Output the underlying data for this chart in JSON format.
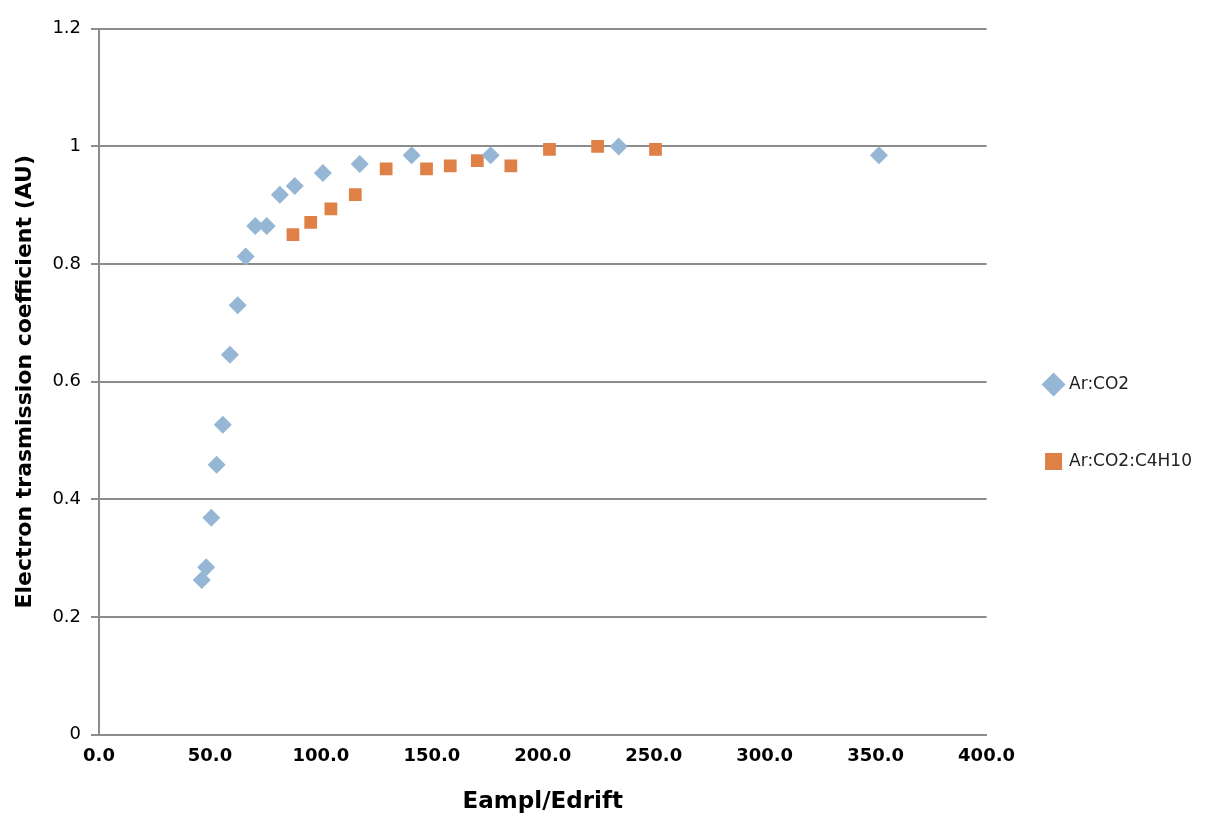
{
  "chart_data": {
    "type": "scatter",
    "xlabel": "Eampl/Edrift",
    "ylabel": "Electron trasmission coefficient (AU)",
    "xlim": [
      0,
      400
    ],
    "xticks": [
      {
        "value": 0,
        "label": "0.0"
      },
      {
        "value": 50,
        "label": "50.0"
      },
      {
        "value": 100,
        "label": "100.0"
      },
      {
        "value": 150,
        "label": "150.0"
      },
      {
        "value": 200,
        "label": "200.0"
      },
      {
        "value": 250,
        "label": "250.0"
      },
      {
        "value": 300,
        "label": "300.0"
      },
      {
        "value": 350,
        "label": "350.0"
      },
      {
        "value": 400,
        "label": "400.0"
      }
    ],
    "ylim": [
      0,
      1.2
    ],
    "yticks": [
      0,
      0.2,
      0.4,
      0.6,
      0.8,
      1,
      1.2
    ],
    "grid": "y",
    "legend": "right",
    "series": [
      {
        "name": "Ar:CO2",
        "color": "#95b6d5",
        "marker": "diamond",
        "x": [
          46.3,
          48.3,
          50.6,
          53.0,
          55.8,
          59.0,
          62.5,
          66.1,
          70.4,
          75.6,
          81.5,
          88.2,
          100.9,
          117.5,
          140.9,
          176.5,
          234.2,
          351.5
        ],
        "values": [
          0.263,
          0.285,
          0.369,
          0.459,
          0.527,
          0.646,
          0.73,
          0.813,
          0.865,
          0.865,
          0.918,
          0.933,
          0.955,
          0.97,
          0.985,
          0.985,
          1.0,
          0.985
        ]
      },
      {
        "name": "Ar:CO2:C4H10",
        "color": "#df8047",
        "marker": "square",
        "x": [
          87.4,
          95.4,
          104.5,
          115.5,
          129.4,
          147.6,
          158.3,
          170.5,
          185.6,
          203.0,
          224.7,
          250.8
        ],
        "values": [
          0.85,
          0.871,
          0.894,
          0.918,
          0.962,
          0.962,
          0.967,
          0.976,
          0.967,
          0.995,
          1.0,
          0.995
        ]
      }
    ]
  }
}
